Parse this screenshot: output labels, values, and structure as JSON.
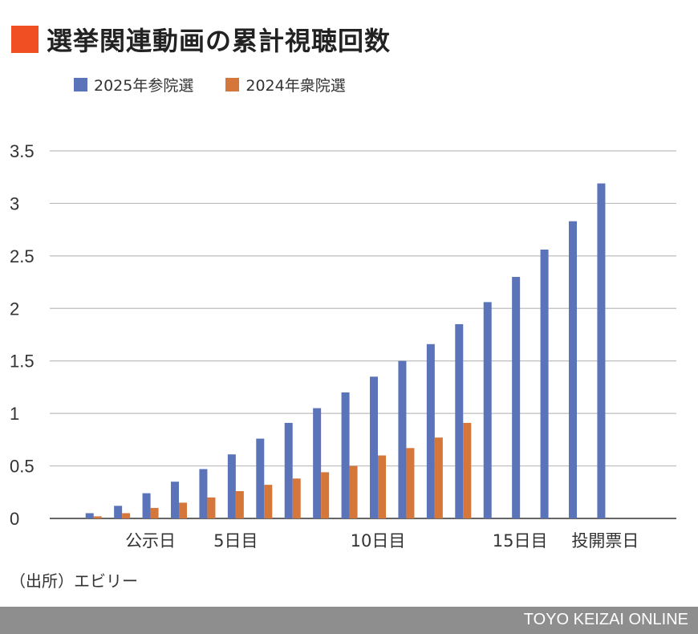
{
  "colors": {
    "title_mark": "#f04e23",
    "series_2025": "#5b73b8",
    "series_2024": "#d5763a",
    "grid": "#bdbdbd",
    "footer": "#8e8e8e"
  },
  "title": "選挙関連動画の累計視聴回数",
  "source": "（出所）エビリー",
  "footer": "TOYO KEIZAI ONLINE",
  "chart_data": {
    "type": "bar",
    "title": "選挙関連動画の累計視聴回数",
    "xlabel": "",
    "ylabel": "",
    "ylim": [
      0,
      3.5
    ],
    "yticks": [
      "0",
      "0.5",
      "1",
      "1.5",
      "2",
      "2.5",
      "3",
      "3.5"
    ],
    "grid": true,
    "legend": "top-left",
    "categories": [
      "",
      "",
      "公示日",
      "",
      "",
      "5日目",
      "",
      "",
      "",
      "",
      "10日目",
      "",
      "",
      "",
      "",
      "15日目",
      "",
      "",
      "投開票日"
    ],
    "series": [
      {
        "name": "2025年参院選",
        "color": "#5b73b8",
        "values": [
          0.05,
          0.12,
          0.24,
          0.35,
          0.47,
          0.61,
          0.76,
          0.91,
          1.05,
          1.2,
          1.35,
          1.5,
          1.66,
          1.85,
          2.06,
          2.3,
          2.56,
          2.83,
          3.19
        ]
      },
      {
        "name": "2024年衆院選",
        "color": "#d5763a",
        "values": [
          0.02,
          0.05,
          0.1,
          0.15,
          0.2,
          0.26,
          0.32,
          0.38,
          0.44,
          0.5,
          0.6,
          0.67,
          0.77,
          0.91,
          null,
          null,
          null,
          null,
          null
        ]
      }
    ]
  }
}
